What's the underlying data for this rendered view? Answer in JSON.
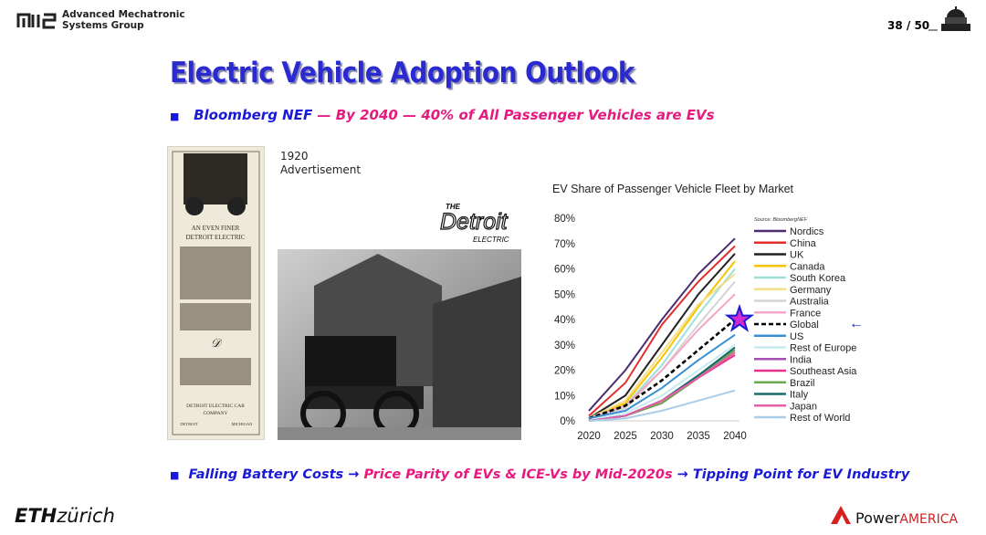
{
  "header": {
    "org_line1": "Advanced Mechatronic",
    "org_line2": "Systems Group",
    "page": "38 / 50"
  },
  "title": "Electric Vehicle Adoption Outlook",
  "subtitle": {
    "source": "Bloomberg NEF",
    "dash": "—",
    "claim": "By 2040 — 40% of All Passenger Vehicles are EVs"
  },
  "caption": {
    "line1": "1920",
    "line2": "Advertisement"
  },
  "advertisement": {
    "headline1": "AN EVEN FINER",
    "headline2": "DETROIT ELECTRIC",
    "company1": "DETROIT ELECTRIC CAR",
    "company2": "COMPANY",
    "city": "DETROIT",
    "state": "MICHIGAN"
  },
  "logo": {
    "the": "THE",
    "name": "Detroit",
    "sub": "ELECTRIC"
  },
  "chart_data": {
    "type": "line",
    "title": "EV Share of Passenger Vehicle Fleet by Market",
    "source_note": "Source: BloombergNEF",
    "x": [
      2020,
      2025,
      2030,
      2035,
      2040
    ],
    "xlim": [
      2020,
      2040
    ],
    "xticks": [
      2020,
      2025,
      2030,
      2035,
      2040
    ],
    "ylim": [
      0,
      80
    ],
    "yticks": [
      {
        "value": 0,
        "label": "0%"
      },
      {
        "value": 10,
        "label": "10%"
      },
      {
        "value": 20,
        "label": "20%"
      },
      {
        "value": 30,
        "label": "30%"
      },
      {
        "value": 40,
        "label": "40%"
      },
      {
        "value": 50,
        "label": "50%"
      },
      {
        "value": 60,
        "label": "60%"
      },
      {
        "value": 70,
        "label": "70%"
      },
      {
        "value": 80,
        "label": "80%"
      }
    ],
    "grid": false,
    "legend": "right",
    "series": [
      {
        "name": "Nordics",
        "color": "#4b2c6f",
        "values": [
          4,
          20,
          40,
          58,
          72
        ]
      },
      {
        "name": "China",
        "color": "#e0302c",
        "values": [
          2,
          15,
          38,
          55,
          69
        ]
      },
      {
        "name": "UK",
        "color": "#222222",
        "values": [
          1,
          10,
          30,
          50,
          66
        ]
      },
      {
        "name": "Canada",
        "color": "#f5c400",
        "values": [
          1,
          7,
          25,
          45,
          63
        ]
      },
      {
        "name": "South Korea",
        "color": "#9fe0d8",
        "values": [
          1,
          6,
          22,
          42,
          60
        ]
      },
      {
        "name": "Germany",
        "color": "#f3df8a",
        "values": [
          1,
          8,
          27,
          46,
          58
        ]
      },
      {
        "name": "Australia",
        "color": "#d4d4d4",
        "values": [
          1,
          5,
          20,
          38,
          55
        ]
      },
      {
        "name": "France",
        "color": "#f4a6c8",
        "values": [
          1,
          6,
          20,
          36,
          50
        ]
      },
      {
        "name": "Global",
        "color": "#000000",
        "dashed": true,
        "values": [
          1,
          6,
          16,
          28,
          40
        ]
      },
      {
        "name": "US",
        "color": "#3a8fd0",
        "values": [
          1,
          4,
          13,
          24,
          34
        ]
      },
      {
        "name": "Rest of Europe",
        "color": "#c6ecf2",
        "values": [
          0,
          3,
          10,
          20,
          30
        ]
      },
      {
        "name": "India",
        "color": "#a34fb0",
        "values": [
          0,
          2,
          8,
          18,
          28
        ]
      },
      {
        "name": "Southeast Asia",
        "color": "#e8308c",
        "values": [
          0,
          2,
          7,
          17,
          26
        ]
      },
      {
        "name": "Brazil",
        "color": "#6aa84f",
        "values": [
          0,
          2,
          7,
          17,
          28
        ]
      },
      {
        "name": "Italy",
        "color": "#1a6b6b",
        "values": [
          0,
          2,
          8,
          18,
          29
        ]
      },
      {
        "name": "Japan",
        "color": "#e75ca8",
        "values": [
          0,
          2,
          8,
          17,
          27
        ]
      },
      {
        "name": "Rest of World",
        "color": "#a9cde8",
        "values": [
          0,
          1,
          4,
          8,
          12
        ]
      }
    ]
  },
  "bottom": {
    "step1": "Falling Battery Costs",
    "arrow1": "→",
    "step2": "Price Parity of EVs & ICE-Vs by Mid-2020s",
    "step3": "→ Tipping Point for EV Industry"
  },
  "footer": {
    "eth": "ETH",
    "zurich": "zürich",
    "power": "Power",
    "america": "AMERICA"
  }
}
